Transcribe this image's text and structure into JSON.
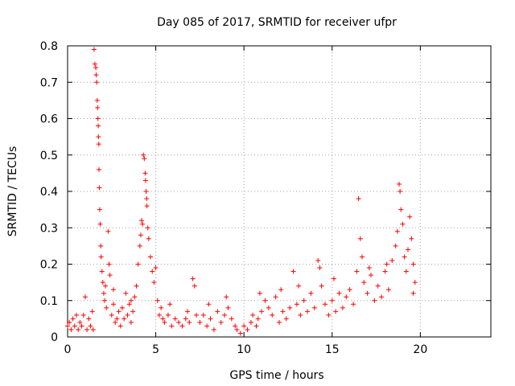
{
  "chart_data": {
    "type": "scatter",
    "title": "Day 085 of 2017, SRMTID for receiver ufpr",
    "xlabel": "GPS time / hours",
    "ylabel": "SRMTID / TECUs",
    "xlim": [
      0,
      24
    ],
    "ylim": [
      0,
      0.8
    ],
    "xticks": [
      "0",
      "5",
      "10",
      "15",
      "20"
    ],
    "yticks": [
      "0",
      "0.1",
      "0.2",
      "0.3",
      "0.4",
      "0.5",
      "0.6",
      "0.7",
      "0.8"
    ],
    "grid": true,
    "marker": "+",
    "color": "#ff0000",
    "series": [
      {
        "name": "SRMTID",
        "points": [
          [
            0.0,
            0.03
          ],
          [
            0.1,
            0.04
          ],
          [
            0.2,
            0.02
          ],
          [
            0.3,
            0.05
          ],
          [
            0.4,
            0.03
          ],
          [
            0.5,
            0.06
          ],
          [
            0.6,
            0.02
          ],
          [
            0.7,
            0.04
          ],
          [
            0.8,
            0.03
          ],
          [
            0.9,
            0.06
          ],
          [
            1.0,
            0.11
          ],
          [
            1.1,
            0.02
          ],
          [
            1.2,
            0.05
          ],
          [
            1.3,
            0.03
          ],
          [
            1.4,
            0.07
          ],
          [
            1.45,
            0.02
          ],
          [
            1.5,
            0.79
          ],
          [
            1.55,
            0.75
          ],
          [
            1.6,
            0.74
          ],
          [
            1.62,
            0.72
          ],
          [
            1.65,
            0.7
          ],
          [
            1.68,
            0.65
          ],
          [
            1.7,
            0.63
          ],
          [
            1.72,
            0.6
          ],
          [
            1.74,
            0.58
          ],
          [
            1.75,
            0.55
          ],
          [
            1.77,
            0.53
          ],
          [
            1.78,
            0.46
          ],
          [
            1.8,
            0.41
          ],
          [
            1.82,
            0.35
          ],
          [
            1.85,
            0.31
          ],
          [
            1.88,
            0.25
          ],
          [
            1.9,
            0.22
          ],
          [
            1.95,
            0.18
          ],
          [
            2.0,
            0.15
          ],
          [
            2.05,
            0.12
          ],
          [
            2.1,
            0.1
          ],
          [
            2.15,
            0.14
          ],
          [
            2.2,
            0.08
          ],
          [
            2.3,
            0.29
          ],
          [
            2.35,
            0.2
          ],
          [
            2.4,
            0.17
          ],
          [
            2.5,
            0.06
          ],
          [
            2.6,
            0.09
          ],
          [
            2.7,
            0.04
          ],
          [
            2.8,
            0.05
          ],
          [
            2.9,
            0.07
          ],
          [
            3.0,
            0.03
          ],
          [
            3.1,
            0.08
          ],
          [
            3.2,
            0.05
          ],
          [
            3.3,
            0.12
          ],
          [
            3.4,
            0.06
          ],
          [
            3.5,
            0.09
          ],
          [
            3.6,
            0.04
          ],
          [
            3.7,
            0.07
          ],
          [
            3.8,
            0.11
          ],
          [
            3.9,
            0.14
          ],
          [
            4.0,
            0.2
          ],
          [
            4.1,
            0.25
          ],
          [
            4.15,
            0.28
          ],
          [
            4.2,
            0.32
          ],
          [
            4.25,
            0.31
          ],
          [
            4.3,
            0.5
          ],
          [
            4.35,
            0.49
          ],
          [
            4.4,
            0.45
          ],
          [
            4.42,
            0.43
          ],
          [
            4.45,
            0.4
          ],
          [
            4.48,
            0.38
          ],
          [
            4.5,
            0.36
          ],
          [
            4.55,
            0.3
          ],
          [
            4.6,
            0.27
          ],
          [
            4.7,
            0.22
          ],
          [
            4.8,
            0.18
          ],
          [
            4.9,
            0.15
          ],
          [
            5.0,
            0.19
          ],
          [
            5.1,
            0.1
          ],
          [
            5.2,
            0.06
          ],
          [
            5.3,
            0.08
          ],
          [
            5.4,
            0.05
          ],
          [
            5.5,
            0.04
          ],
          [
            5.7,
            0.06
          ],
          [
            5.9,
            0.03
          ],
          [
            6.1,
            0.05
          ],
          [
            6.3,
            0.04
          ],
          [
            6.5,
            0.03
          ],
          [
            6.7,
            0.05
          ],
          [
            6.9,
            0.04
          ],
          [
            7.1,
            0.16
          ],
          [
            7.2,
            0.14
          ],
          [
            7.3,
            0.06
          ],
          [
            7.5,
            0.04
          ],
          [
            7.7,
            0.06
          ],
          [
            7.9,
            0.03
          ],
          [
            8.1,
            0.05
          ],
          [
            8.3,
            0.02
          ],
          [
            8.5,
            0.07
          ],
          [
            8.7,
            0.04
          ],
          [
            8.9,
            0.06
          ],
          [
            9.1,
            0.08
          ],
          [
            9.3,
            0.05
          ],
          [
            9.5,
            0.03
          ],
          [
            9.6,
            0.02
          ],
          [
            9.8,
            0.01
          ],
          [
            10.0,
            0.03
          ],
          [
            10.2,
            0.02
          ],
          [
            10.4,
            0.04
          ],
          [
            10.5,
            0.06
          ],
          [
            10.7,
            0.03
          ],
          [
            10.9,
            0.12
          ],
          [
            11.0,
            0.07
          ],
          [
            11.2,
            0.1
          ],
          [
            11.4,
            0.08
          ],
          [
            11.6,
            0.06
          ],
          [
            11.8,
            0.11
          ],
          [
            12.0,
            0.04
          ],
          [
            12.2,
            0.07
          ],
          [
            12.4,
            0.05
          ],
          [
            12.6,
            0.08
          ],
          [
            12.8,
            0.18
          ],
          [
            13.0,
            0.09
          ],
          [
            13.2,
            0.06
          ],
          [
            13.4,
            0.1
          ],
          [
            13.6,
            0.07
          ],
          [
            13.8,
            0.12
          ],
          [
            14.0,
            0.08
          ],
          [
            14.2,
            0.21
          ],
          [
            14.3,
            0.19
          ],
          [
            14.4,
            0.14
          ],
          [
            14.6,
            0.09
          ],
          [
            14.8,
            0.06
          ],
          [
            15.0,
            0.1
          ],
          [
            15.2,
            0.07
          ],
          [
            15.4,
            0.12
          ],
          [
            15.6,
            0.08
          ],
          [
            15.8,
            0.11
          ],
          [
            16.0,
            0.13
          ],
          [
            16.2,
            0.09
          ],
          [
            16.4,
            0.18
          ],
          [
            16.5,
            0.38
          ],
          [
            16.6,
            0.27
          ],
          [
            16.7,
            0.22
          ],
          [
            16.8,
            0.15
          ],
          [
            17.0,
            0.12
          ],
          [
            17.2,
            0.17
          ],
          [
            17.4,
            0.1
          ],
          [
            17.6,
            0.14
          ],
          [
            17.8,
            0.11
          ],
          [
            18.0,
            0.18
          ],
          [
            18.2,
            0.13
          ],
          [
            18.4,
            0.21
          ],
          [
            18.6,
            0.25
          ],
          [
            18.7,
            0.29
          ],
          [
            18.8,
            0.42
          ],
          [
            18.85,
            0.4
          ],
          [
            18.9,
            0.35
          ],
          [
            19.0,
            0.31
          ],
          [
            19.1,
            0.22
          ],
          [
            19.2,
            0.18
          ],
          [
            19.3,
            0.24
          ],
          [
            19.4,
            0.33
          ],
          [
            19.5,
            0.27
          ],
          [
            19.6,
            0.2
          ],
          [
            19.7,
            0.15
          ],
          [
            2.6,
            0.13
          ],
          [
            3.6,
            0.1
          ],
          [
            5.8,
            0.09
          ],
          [
            6.8,
            0.07
          ],
          [
            8.0,
            0.09
          ],
          [
            9.0,
            0.11
          ],
          [
            10.8,
            0.05
          ],
          [
            12.1,
            0.13
          ],
          [
            13.1,
            0.14
          ],
          [
            15.1,
            0.16
          ],
          [
            17.1,
            0.19
          ],
          [
            18.1,
            0.2
          ],
          [
            19.6,
            0.12
          ]
        ]
      }
    ]
  }
}
